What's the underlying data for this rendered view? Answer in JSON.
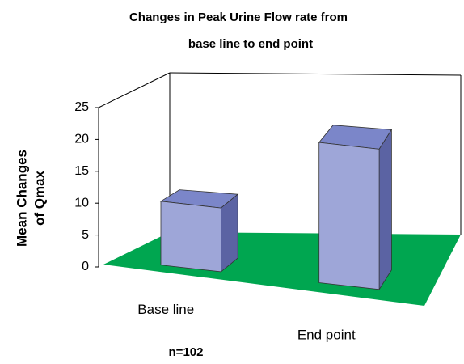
{
  "chart_data": {
    "type": "bar3d",
    "title": [
      "Changes in Peak Urine Flow rate from",
      "base line to end point"
    ],
    "y_label": [
      "Mean Changes",
      "of Qmax"
    ],
    "categories": [
      "Base line",
      "End point"
    ],
    "values": [
      10,
      22
    ],
    "color": "#9ea6d8",
    "floor_color": "#00a650",
    "ylim": [
      0,
      25
    ],
    "yticks": [
      0,
      5,
      10,
      15,
      20,
      25
    ],
    "note": "n=102"
  }
}
